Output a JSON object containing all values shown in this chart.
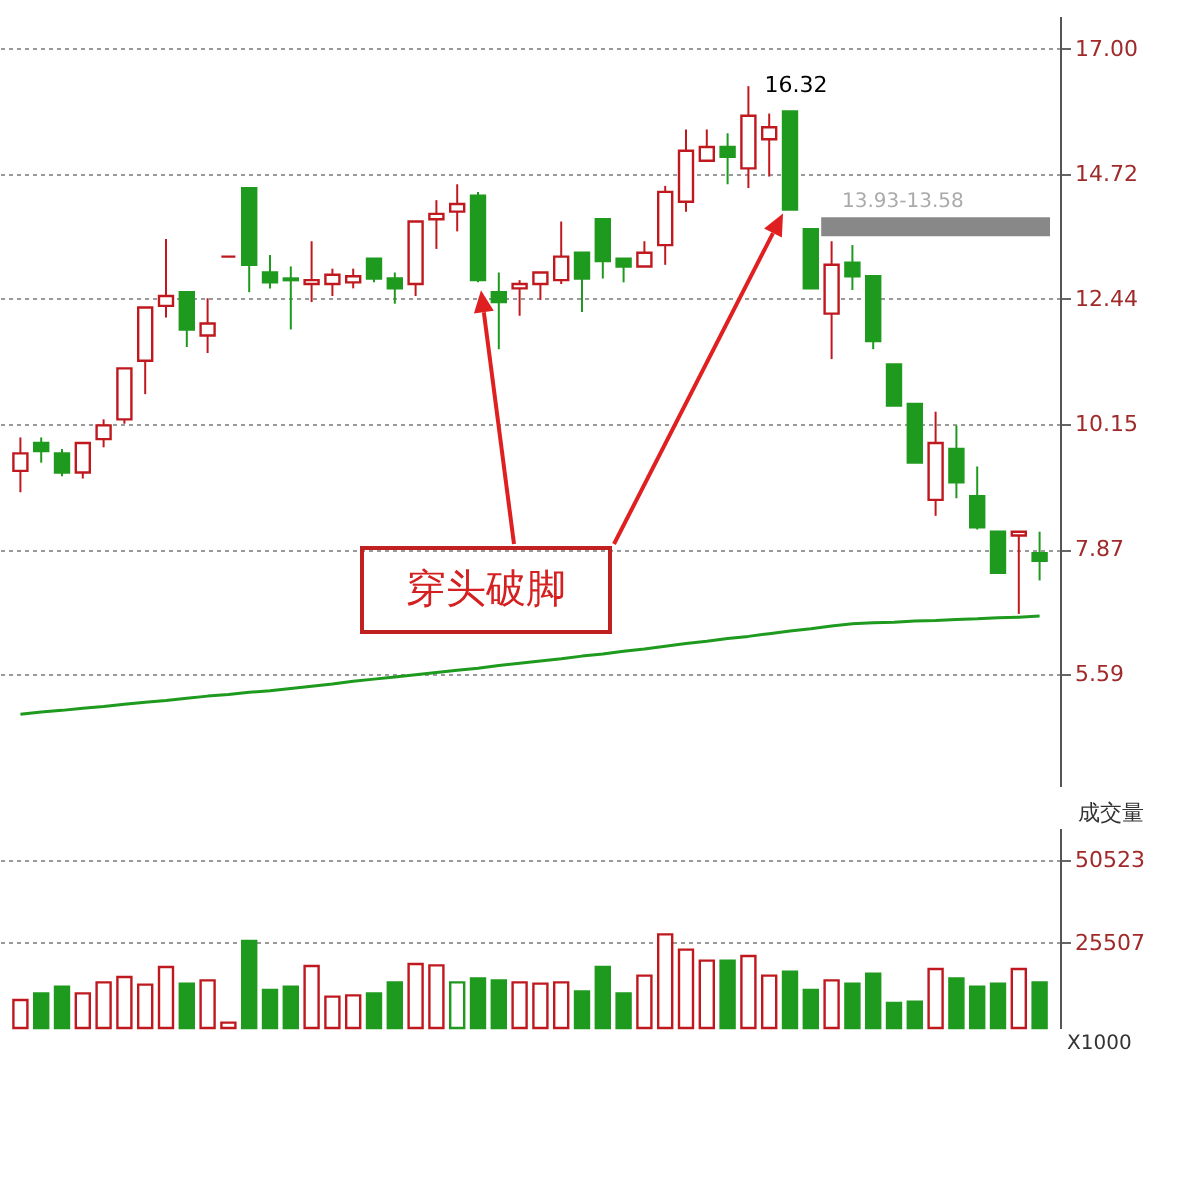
{
  "chart_data": [
    {
      "type": "candlestick",
      "categories": [
        null,
        null,
        null,
        null,
        null,
        null,
        null,
        null,
        null,
        null,
        null,
        null,
        null,
        null,
        null,
        null,
        null,
        null,
        null,
        null,
        null,
        null,
        null,
        null,
        null,
        null,
        null,
        null,
        null,
        null,
        null,
        null,
        null,
        null,
        null,
        null,
        null,
        null,
        null,
        null,
        null,
        null,
        null,
        null,
        null,
        null,
        null,
        null,
        null,
        null
      ],
      "ohlc": [
        [
          9.3,
          9.91,
          8.91,
          9.62
        ],
        [
          9.81,
          9.91,
          9.45,
          9.66
        ],
        [
          9.62,
          9.7,
          9.2,
          9.27
        ],
        [
          9.27,
          9.81,
          9.16,
          9.81
        ],
        [
          9.88,
          10.24,
          9.73,
          10.13
        ],
        [
          10.24,
          11.17,
          10.16,
          11.17
        ],
        [
          11.31,
          12.28,
          10.7,
          12.28
        ],
        [
          12.31,
          13.53,
          12.1,
          12.49
        ],
        [
          12.56,
          12.56,
          11.56,
          11.88
        ],
        [
          11.77,
          12.45,
          11.45,
          11.99
        ],
        [
          13.21,
          13.21,
          13.21,
          13.21
        ],
        [
          14.46,
          14.46,
          12.56,
          13.06
        ],
        [
          12.92,
          13.24,
          12.63,
          12.74
        ],
        [
          12.81,
          13.03,
          11.88,
          12.78
        ],
        [
          12.71,
          13.49,
          12.38,
          12.78
        ],
        [
          12.71,
          12.99,
          12.49,
          12.88
        ],
        [
          12.74,
          12.99,
          12.63,
          12.85
        ],
        [
          13.17,
          13.17,
          12.74,
          12.81
        ],
        [
          12.81,
          12.92,
          12.35,
          12.63
        ],
        [
          12.71,
          13.85,
          12.49,
          13.85
        ],
        [
          13.89,
          14.24,
          13.35,
          13.99
        ],
        [
          14.03,
          14.53,
          13.67,
          14.17
        ],
        [
          14.32,
          14.39,
          12.74,
          12.78
        ],
        [
          12.56,
          12.92,
          11.52,
          12.38
        ],
        [
          12.63,
          12.78,
          12.13,
          12.71
        ],
        [
          12.71,
          12.92,
          12.42,
          12.92
        ],
        [
          12.78,
          13.85,
          12.71,
          13.21
        ],
        [
          13.28,
          13.28,
          12.2,
          12.81
        ],
        [
          13.89,
          13.89,
          12.81,
          13.13
        ],
        [
          13.17,
          13.17,
          12.74,
          13.03
        ],
        [
          13.03,
          13.49,
          13.03,
          13.28
        ],
        [
          13.42,
          14.5,
          13.06,
          14.39
        ],
        [
          14.21,
          15.53,
          14.03,
          15.14
        ],
        [
          14.96,
          15.53,
          14.96,
          15.21
        ],
        [
          15.21,
          15.46,
          14.53,
          15.03
        ],
        [
          14.82,
          16.32,
          14.46,
          15.78
        ],
        [
          15.35,
          15.82,
          14.67,
          15.57
        ],
        [
          15.86,
          15.86,
          14.07,
          14.07
        ],
        [
          13.71,
          13.71,
          12.63,
          12.63
        ],
        [
          12.17,
          13.49,
          11.34,
          13.06
        ],
        [
          13.1,
          13.42,
          12.6,
          12.85
        ],
        [
          12.85,
          12.85,
          11.52,
          11.67
        ],
        [
          11.24,
          11.24,
          10.49,
          10.49
        ],
        [
          10.52,
          10.52,
          9.45,
          9.45
        ],
        [
          8.77,
          10.38,
          8.48,
          9.81
        ],
        [
          9.7,
          10.13,
          8.8,
          9.09
        ],
        [
          8.84,
          9.38,
          8.23,
          8.27
        ],
        [
          8.19,
          8.19,
          7.44,
          7.44
        ],
        [
          8.12,
          8.19,
          6.69,
          8.19
        ],
        [
          7.8,
          8.19,
          7.3,
          7.66
        ]
      ],
      "colors": [
        "#c0181f",
        "#1e9a1e",
        "#1e9a1e",
        "#c0181f",
        "#c0181f",
        "#c0181f",
        "#c0181f",
        "#c0181f",
        "#1e9a1e",
        "#c0181f",
        "#c0181f",
        "#1e9a1e",
        "#1e9a1e",
        "#1e9a1e",
        "#c0181f",
        "#c0181f",
        "#c0181f",
        "#1e9a1e",
        "#1e9a1e",
        "#c0181f",
        "#c0181f",
        "#c0181f",
        "#1e9a1e",
        "#1e9a1e",
        "#c0181f",
        "#c0181f",
        "#c0181f",
        "#1e9a1e",
        "#1e9a1e",
        "#1e9a1e",
        "#c0181f",
        "#c0181f",
        "#c0181f",
        "#c0181f",
        "#1e9a1e",
        "#c0181f",
        "#c0181f",
        "#1e9a1e",
        "#1e9a1e",
        "#c0181f",
        "#1e9a1e",
        "#1e9a1e",
        "#1e9a1e",
        "#1e9a1e",
        "#c0181f",
        "#1e9a1e",
        "#1e9a1e",
        "#1e9a1e",
        "#c0181f",
        "#1e9a1e"
      ],
      "series": [
        {
          "type": "line",
          "color": "#1e9a1e",
          "values": [
            4.86,
            4.9,
            4.93,
            4.97,
            5.0,
            5.04,
            5.08,
            5.11,
            5.15,
            5.19,
            5.22,
            5.26,
            5.29,
            5.33,
            5.37,
            5.41,
            5.46,
            5.5,
            5.54,
            5.58,
            5.62,
            5.66,
            5.7,
            5.75,
            5.79,
            5.83,
            5.87,
            5.92,
            5.96,
            6.01,
            6.05,
            6.1,
            6.15,
            6.19,
            6.24,
            6.28,
            6.33,
            6.38,
            6.42,
            6.47,
            6.51,
            6.53,
            6.54,
            6.56,
            6.57,
            6.59,
            6.6,
            6.62,
            6.63,
            6.65
          ]
        }
      ],
      "ylim": [
        3.55,
        17.6
      ],
      "yticks": [
        {
          "value": 5.59,
          "label": "5.59"
        },
        {
          "value": 7.87,
          "label": "7.87"
        },
        {
          "value": 10.15,
          "label": "10.15"
        },
        {
          "value": 12.44,
          "label": "12.44"
        },
        {
          "value": 14.72,
          "label": "14.72"
        },
        {
          "value": 17,
          "label": "17.00"
        }
      ],
      "grid": "y",
      "tick_labels": "y",
      "bands": [
        {
          "axis": "y",
          "from": 13.58,
          "to": 13.93,
          "label": "13.93-13.58",
          "color": "#888888"
        }
      ],
      "annotations": [
        "穿头破脚",
        "16.32"
      ]
    },
    {
      "type": "bar",
      "title": "成交量",
      "categories": [
        null,
        null,
        null,
        null,
        null,
        null,
        null,
        null,
        null,
        null,
        null,
        null,
        null,
        null,
        null,
        null,
        null,
        null,
        null,
        null,
        null,
        null,
        null,
        null,
        null,
        null,
        null,
        null,
        null,
        null,
        null,
        null,
        null,
        null,
        null,
        null,
        null,
        null,
        null,
        null,
        null,
        null,
        null,
        null,
        null,
        null,
        null,
        null,
        null,
        null
      ],
      "values": [
        8400,
        10400,
        12400,
        10400,
        13700,
        15300,
        13000,
        18300,
        13300,
        14300,
        1600,
        26100,
        11400,
        12400,
        18600,
        9400,
        9800,
        10400,
        13700,
        19200,
        18800,
        13700,
        14900,
        14300,
        13700,
        13300,
        13700,
        11000,
        18300,
        10400,
        15700,
        28100,
        23500,
        20200,
        20200,
        21600,
        15700,
        16900,
        11400,
        14300,
        13300,
        16300,
        7500,
        7900,
        17700,
        14900,
        12400,
        13300,
        17700,
        13700
      ],
      "colors": [
        "#c0181f",
        "#1e9a1e",
        "#1e9a1e",
        "#c0181f",
        "#c0181f",
        "#c0181f",
        "#c0181f",
        "#c0181f",
        "#1e9a1e",
        "#c0181f",
        "#c0181f",
        "#1e9a1e",
        "#1e9a1e",
        "#1e9a1e",
        "#c0181f",
        "#c0181f",
        "#c0181f",
        "#1e9a1e",
        "#1e9a1e",
        "#c0181f",
        "#c0181f",
        "#1e9a1e",
        "#1e9a1e",
        "#1e9a1e",
        "#c0181f",
        "#c0181f",
        "#c0181f",
        "#1e9a1e",
        "#1e9a1e",
        "#1e9a1e",
        "#c0181f",
        "#c0181f",
        "#c0181f",
        "#c0181f",
        "#1e9a1e",
        "#c0181f",
        "#c0181f",
        "#1e9a1e",
        "#1e9a1e",
        "#c0181f",
        "#1e9a1e",
        "#1e9a1e",
        "#1e9a1e",
        "#1e9a1e",
        "#c0181f",
        "#1e9a1e",
        "#1e9a1e",
        "#1e9a1e",
        "#c0181f",
        "#1e9a1e"
      ],
      "ylim": [
        0,
        60000
      ],
      "yticks": [
        {
          "value": 25507,
          "label": "25507"
        },
        {
          "value": 50523,
          "label": "50523"
        }
      ],
      "ylabel": "X1000",
      "grid": "y",
      "tick_labels": "y"
    }
  ]
}
